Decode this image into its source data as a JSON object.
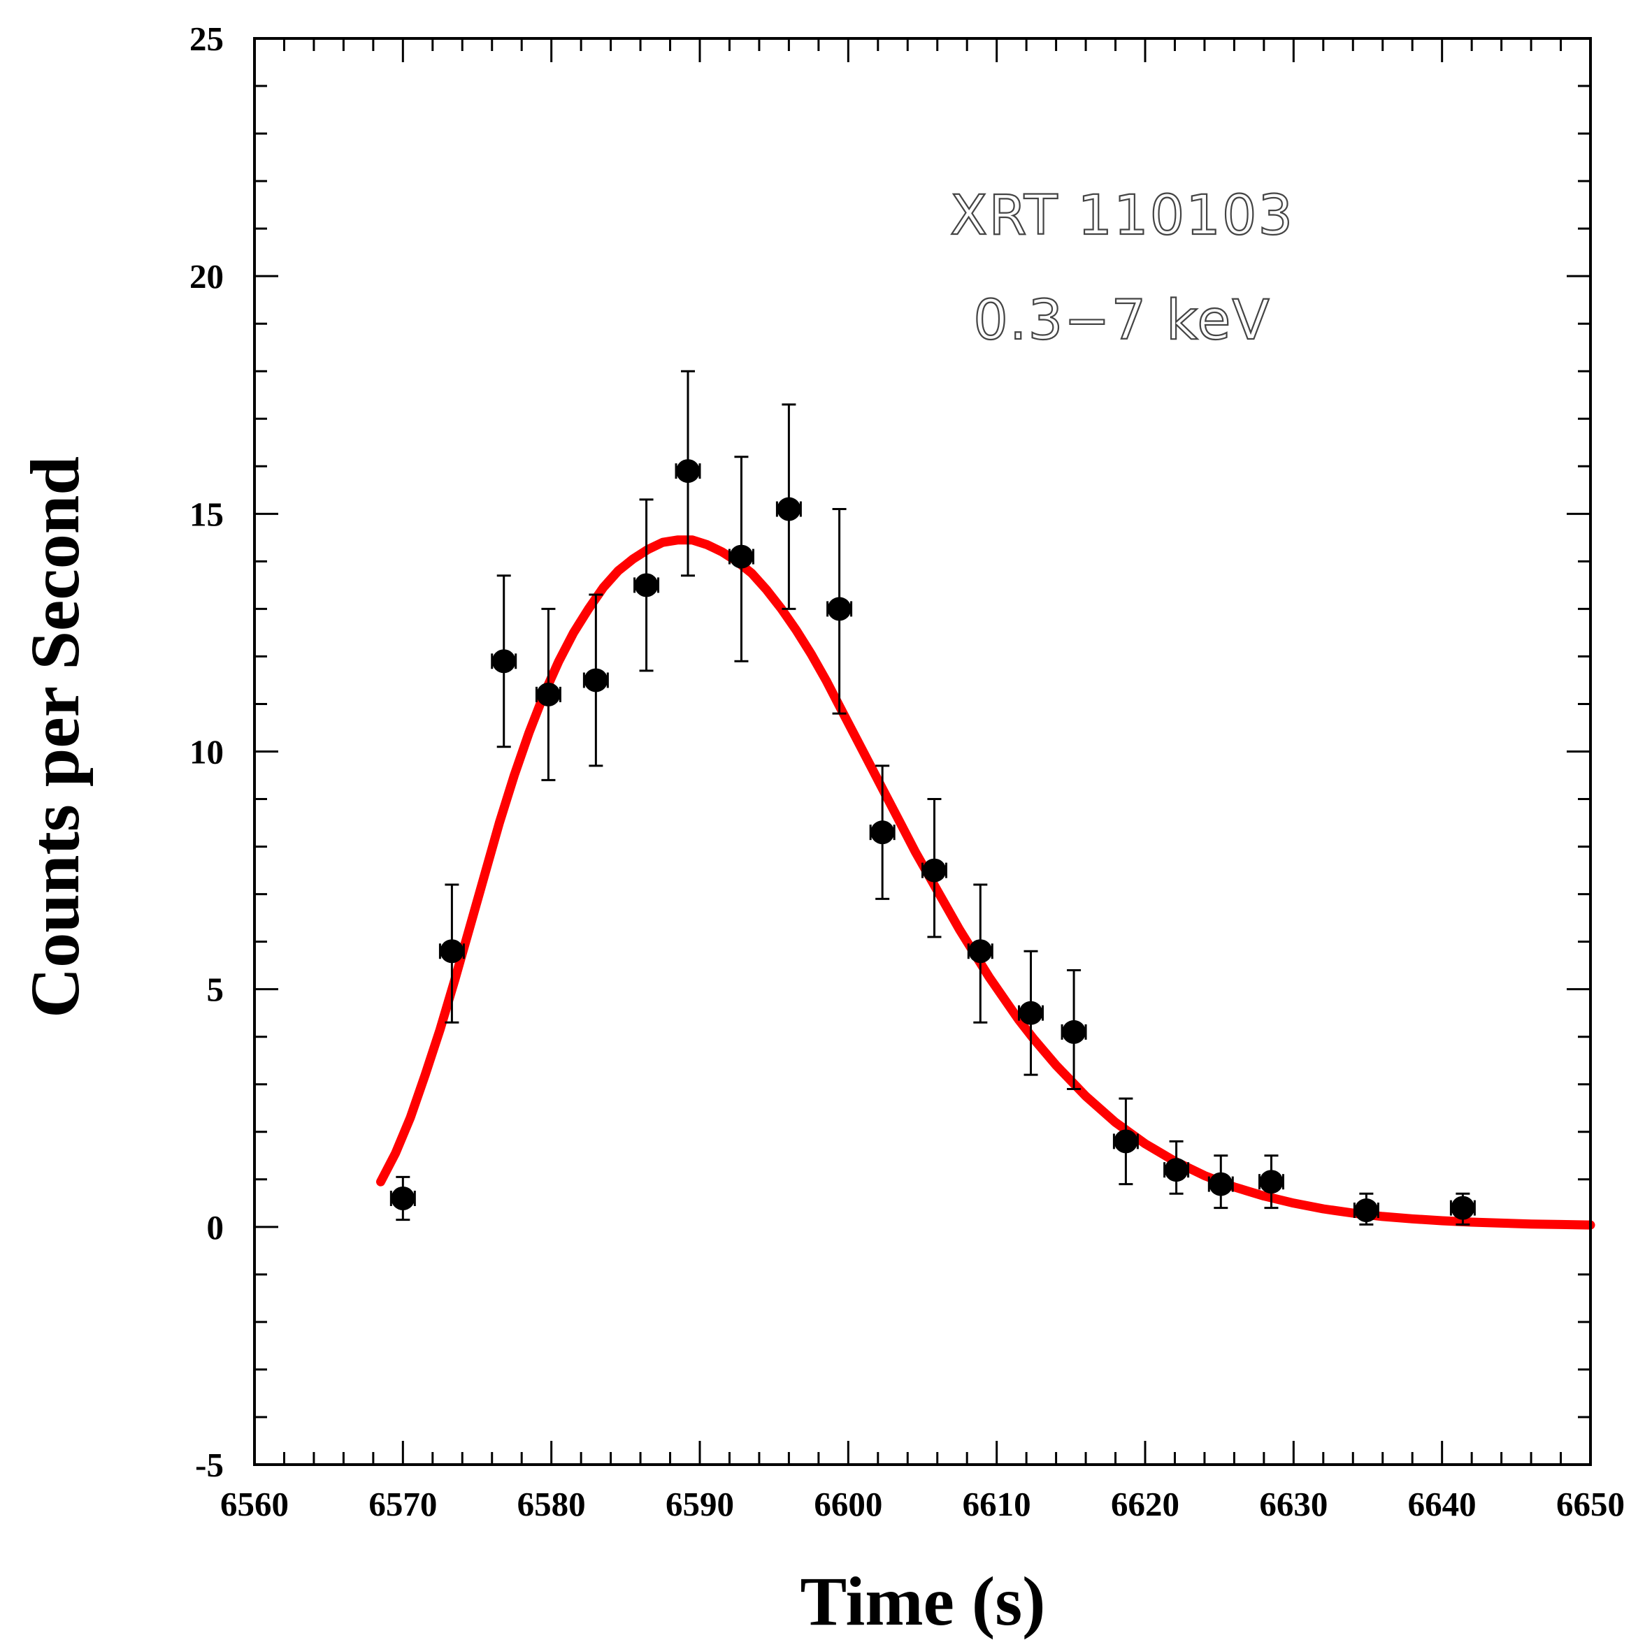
{
  "chart_data": {
    "type": "scatter",
    "title": "",
    "xlabel": "Time (s)",
    "ylabel": "Counts per Second",
    "xlim": [
      6560,
      6650
    ],
    "ylim": [
      -5,
      25
    ],
    "xticks": [
      6560,
      6570,
      6580,
      6590,
      6600,
      6610,
      6620,
      6630,
      6640,
      6650
    ],
    "yticks": [
      -5,
      0,
      5,
      10,
      15,
      20,
      25
    ],
    "annotations": [
      "XRT 110103",
      "0.3−7 keV"
    ],
    "series": [
      {
        "name": "data",
        "marker": "filled-circle",
        "color": "#000000",
        "points": [
          {
            "x": 6570.0,
            "y": 0.6,
            "xerr": 0.8,
            "ylo": 0.15,
            "yhi": 1.05
          },
          {
            "x": 6573.3,
            "y": 5.8,
            "xerr": 0.8,
            "ylo": 4.3,
            "yhi": 7.2
          },
          {
            "x": 6576.8,
            "y": 11.9,
            "xerr": 0.8,
            "ylo": 10.1,
            "yhi": 13.7
          },
          {
            "x": 6579.8,
            "y": 11.2,
            "xerr": 0.8,
            "ylo": 9.4,
            "yhi": 13.0
          },
          {
            "x": 6583.0,
            "y": 11.5,
            "xerr": 0.8,
            "ylo": 9.7,
            "yhi": 13.3
          },
          {
            "x": 6586.4,
            "y": 13.5,
            "xerr": 0.8,
            "ylo": 11.7,
            "yhi": 15.3
          },
          {
            "x": 6589.2,
            "y": 15.9,
            "xerr": 0.8,
            "ylo": 13.7,
            "yhi": 18.0
          },
          {
            "x": 6592.8,
            "y": 14.1,
            "xerr": 0.8,
            "ylo": 11.9,
            "yhi": 16.2
          },
          {
            "x": 6596.0,
            "y": 15.1,
            "xerr": 0.8,
            "ylo": 13.0,
            "yhi": 17.3
          },
          {
            "x": 6599.4,
            "y": 13.0,
            "xerr": 0.8,
            "ylo": 10.8,
            "yhi": 15.1
          },
          {
            "x": 6602.3,
            "y": 8.3,
            "xerr": 0.8,
            "ylo": 6.9,
            "yhi": 9.7
          },
          {
            "x": 6605.8,
            "y": 7.5,
            "xerr": 0.8,
            "ylo": 6.1,
            "yhi": 9.0
          },
          {
            "x": 6608.9,
            "y": 5.8,
            "xerr": 0.8,
            "ylo": 4.3,
            "yhi": 7.2
          },
          {
            "x": 6612.3,
            "y": 4.5,
            "xerr": 0.8,
            "ylo": 3.2,
            "yhi": 5.8
          },
          {
            "x": 6615.2,
            "y": 4.1,
            "xerr": 0.8,
            "ylo": 2.9,
            "yhi": 5.4
          },
          {
            "x": 6618.7,
            "y": 1.8,
            "xerr": 0.8,
            "ylo": 0.9,
            "yhi": 2.7
          },
          {
            "x": 6622.1,
            "y": 1.2,
            "xerr": 0.8,
            "ylo": 0.7,
            "yhi": 1.8
          },
          {
            "x": 6625.1,
            "y": 0.9,
            "xerr": 0.8,
            "ylo": 0.4,
            "yhi": 1.5
          },
          {
            "x": 6628.5,
            "y": 0.95,
            "xerr": 0.8,
            "ylo": 0.4,
            "yhi": 1.5
          },
          {
            "x": 6634.9,
            "y": 0.35,
            "xerr": 0.8,
            "ylo": 0.05,
            "yhi": 0.7
          },
          {
            "x": 6641.4,
            "y": 0.4,
            "xerr": 0.8,
            "ylo": 0.05,
            "yhi": 0.7
          }
        ]
      },
      {
        "name": "fit",
        "type": "line",
        "color": "#ff0000",
        "x": [
          6568.5,
          6569.5,
          6570.5,
          6571.5,
          6572.5,
          6573.5,
          6574.5,
          6575.5,
          6576.5,
          6577.5,
          6578.5,
          6579.5,
          6580.5,
          6581.5,
          6582.5,
          6583.5,
          6584.5,
          6585.5,
          6586.5,
          6587.5,
          6588.5,
          6589.5,
          6590.5,
          6591.5,
          6592.5,
          6593.5,
          6594.5,
          6595.5,
          6596.5,
          6597.5,
          6598.5,
          6599.5,
          6600.5,
          6601.5,
          6602.5,
          6603.5,
          6604.5,
          6605.5,
          6606.5,
          6607.5,
          6608.5,
          6609.5,
          6610.5,
          6611.5,
          6612.5,
          6614,
          6616,
          6618,
          6620,
          6622,
          6624,
          6626,
          6628,
          6630,
          6632,
          6634,
          6636,
          6638,
          6640,
          6642,
          6644,
          6646,
          6648,
          6650
        ],
        "y": [
          0.95,
          1.55,
          2.3,
          3.2,
          4.15,
          5.2,
          6.3,
          7.4,
          8.5,
          9.5,
          10.4,
          11.2,
          11.9,
          12.5,
          13.0,
          13.45,
          13.8,
          14.05,
          14.25,
          14.4,
          14.45,
          14.45,
          14.35,
          14.2,
          14.0,
          13.75,
          13.4,
          13.0,
          12.55,
          12.05,
          11.5,
          10.9,
          10.3,
          9.7,
          9.1,
          8.5,
          7.9,
          7.35,
          6.8,
          6.25,
          5.75,
          5.25,
          4.8,
          4.35,
          3.95,
          3.4,
          2.75,
          2.2,
          1.75,
          1.38,
          1.08,
          0.84,
          0.65,
          0.5,
          0.38,
          0.29,
          0.22,
          0.17,
          0.13,
          0.1,
          0.08,
          0.06,
          0.05,
          0.04
        ]
      }
    ]
  }
}
